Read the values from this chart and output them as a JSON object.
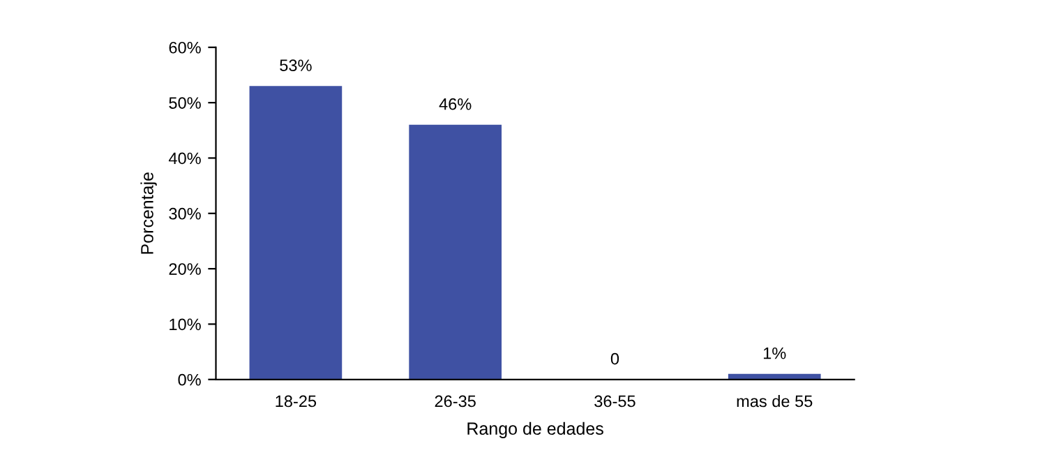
{
  "chart_data": {
    "type": "bar",
    "xlabel": "Rango de edades",
    "ylabel": "Porcentaje",
    "categories": [
      "18-25",
      "26-35",
      "36-55",
      "mas de 55"
    ],
    "values": [
      53,
      46,
      0,
      1
    ],
    "value_labels": [
      "53%",
      "46%",
      "0",
      "1%"
    ],
    "color": "#3f51a3",
    "ylim": [
      0,
      60
    ],
    "yticks": [
      {
        "value": 0,
        "label": "0%"
      },
      {
        "value": 10,
        "label": "10%"
      },
      {
        "value": 20,
        "label": "20%"
      },
      {
        "value": 30,
        "label": "30%"
      },
      {
        "value": 40,
        "label": "40%"
      },
      {
        "value": 50,
        "label": "50%"
      },
      {
        "value": 60,
        "label": "60%"
      }
    ],
    "grid": false
  }
}
